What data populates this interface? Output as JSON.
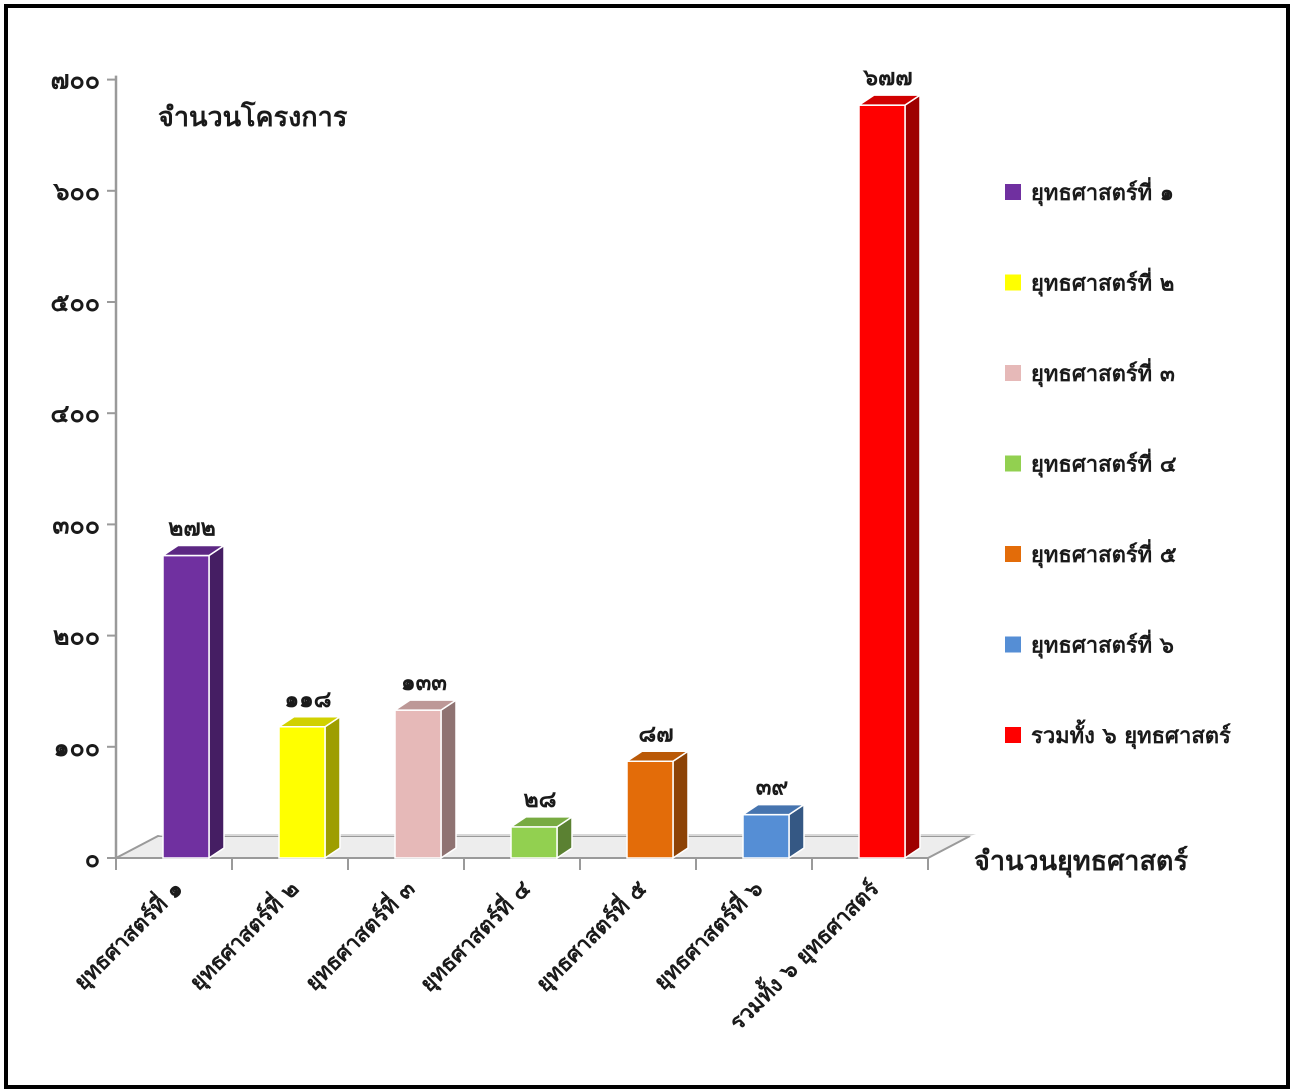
{
  "chart_data": {
    "type": "bar",
    "title": "จำนวนโครงการ",
    "xlabel": "จำนวนยุทธศาสตร์",
    "ylabel": "",
    "ylim": [
      0,
      700
    ],
    "yticks": [
      "๐",
      "๑๐๐",
      "๒๐๐",
      "๓๐๐",
      "๔๐๐",
      "๕๐๐",
      "๖๐๐",
      "๗๐๐"
    ],
    "categories": [
      "ยุทธศาสตร์ที่ ๑",
      "ยุทธศาสตร์ที่ ๒",
      "ยุทธศาสตร์ที่ ๓",
      "ยุทธศาสตร์ที่ ๔",
      "ยุทธศาสตร์ที่ ๕",
      "ยุทธศาสตร์ที่ ๖",
      "รวมทั้ง ๖ ยุทธศาสตร์"
    ],
    "values": [
      272,
      118,
      133,
      28,
      87,
      39,
      677
    ],
    "value_labels": [
      "๒๗๒",
      "๑๑๘",
      "๑๓๓",
      "๒๘",
      "๘๗",
      "๓๙",
      "๖๗๗"
    ],
    "colors": [
      "#7030a0",
      "#ffff00",
      "#e6b9b8",
      "#92d050",
      "#e36c09",
      "#558ed5",
      "#ff0000"
    ],
    "legend_position": "right",
    "grid": false,
    "style": "3d"
  }
}
